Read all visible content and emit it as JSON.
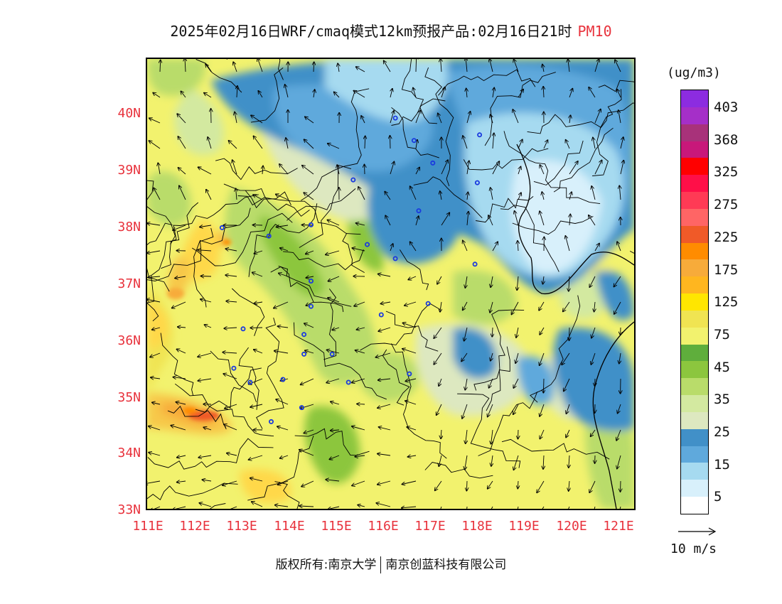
{
  "title": {
    "text": "2025年02月16日WRF/cmaq模式12km预报产品:02月16日21时",
    "pollutant": "PM10"
  },
  "map": {
    "lat_labels": [
      "40N",
      "39N",
      "38N",
      "37N",
      "36N",
      "35N",
      "34N",
      "33N"
    ],
    "lon_labels": [
      "111E",
      "112E",
      "113E",
      "114E",
      "115E",
      "116E",
      "117E",
      "118E",
      "119E",
      "120E",
      "121E"
    ],
    "lon_range": [
      111,
      121.4
    ],
    "lat_range": [
      33,
      41
    ],
    "city_markers": [
      [
        112.6,
        38.0
      ],
      [
        113.6,
        37.85
      ],
      [
        114.5,
        38.05
      ],
      [
        115.4,
        38.85
      ],
      [
        115.7,
        37.7
      ],
      [
        116.3,
        37.45
      ],
      [
        116.3,
        39.95
      ],
      [
        116.7,
        39.55
      ],
      [
        117.1,
        39.15
      ],
      [
        116.8,
        38.3
      ],
      [
        118.1,
        39.65
      ],
      [
        118.0,
        37.35
      ],
      [
        118.05,
        38.8
      ],
      [
        117.0,
        36.65
      ],
      [
        116.0,
        36.45
      ],
      [
        114.5,
        37.05
      ],
      [
        114.5,
        36.6
      ],
      [
        114.35,
        36.1
      ],
      [
        114.35,
        35.75
      ],
      [
        114.95,
        35.75
      ],
      [
        115.3,
        35.25
      ],
      [
        116.6,
        35.4
      ],
      [
        113.05,
        36.2
      ],
      [
        112.85,
        35.5
      ],
      [
        113.2,
        35.25
      ],
      [
        113.9,
        35.3
      ],
      [
        114.3,
        34.8
      ],
      [
        113.65,
        34.55
      ]
    ]
  },
  "legend": {
    "unit": "(ug/m3)",
    "labels": [
      "403",
      "368",
      "325",
      "275",
      "225",
      "175",
      "125",
      "75",
      "45",
      "35",
      "25",
      "15",
      "5"
    ],
    "colors": [
      "#8c2ce0",
      "#a52fc8",
      "#a8327a",
      "#c8187a",
      "#ff0000",
      "#ff0f48",
      "#ff3a55",
      "#ff6565",
      "#f05a28",
      "#ff8c00",
      "#f7ab3a",
      "#ffb61f",
      "#ffe600",
      "#f0e452",
      "#f2f26e",
      "#5fae3c",
      "#8cc63e",
      "#b9dc6a",
      "#d3e9a0",
      "#dde8c0",
      "#4190c8",
      "#5fa9dc",
      "#a6daf0",
      "#d8f0fb",
      "#ffffff"
    ]
  },
  "wind_vector": {
    "label": "10 m/s"
  },
  "copyright": {
    "left": "版权所有:南京大学",
    "right": "南京创蓝科技有限公司"
  }
}
